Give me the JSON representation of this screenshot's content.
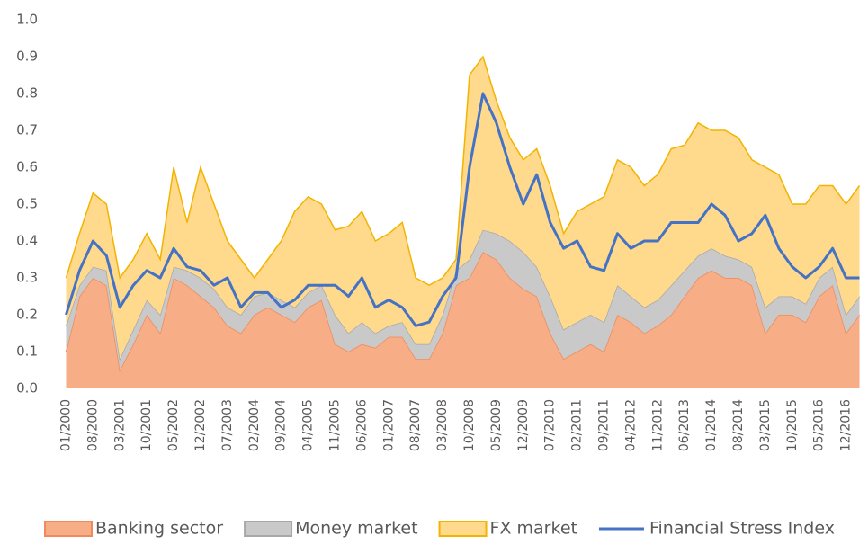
{
  "chart_data": {
    "type": "stacked-area-line",
    "categories": [
      "01/2000",
      null,
      "08/2000",
      null,
      "03/2001",
      null,
      "10/2001",
      null,
      "05/2002",
      null,
      "12/2002",
      null,
      "07/2003",
      null,
      "02/2004",
      null,
      "09/2004",
      null,
      "04/2005",
      null,
      "11/2005",
      null,
      "06/2006",
      null,
      "01/2007",
      null,
      "08/2007",
      null,
      "03/2008",
      null,
      "10/2008",
      null,
      "05/2009",
      null,
      "12/2009",
      null,
      "07/2010",
      null,
      "02/2011",
      null,
      "09/2011",
      null,
      "04/2012",
      null,
      "11/2012",
      null,
      "06/2013",
      null,
      "01/2014",
      null,
      "08/2014",
      null,
      "03/2015",
      null,
      "10/2015",
      null,
      "05/2016",
      null,
      "12/2016",
      null
    ],
    "series": [
      {
        "name": "Banking sector",
        "kind": "area",
        "color": "#f7ad86",
        "values": [
          0.1,
          0.25,
          0.3,
          0.28,
          0.05,
          0.12,
          0.2,
          0.15,
          0.3,
          0.28,
          0.25,
          0.22,
          0.17,
          0.15,
          0.2,
          0.22,
          0.2,
          0.18,
          0.22,
          0.24,
          0.12,
          0.1,
          0.12,
          0.11,
          0.14,
          0.14,
          0.08,
          0.08,
          0.15,
          0.28,
          0.3,
          0.37,
          0.35,
          0.3,
          0.27,
          0.25,
          0.15,
          0.08,
          0.1,
          0.12,
          0.1,
          0.2,
          0.18,
          0.15,
          0.17,
          0.2,
          0.25,
          0.3,
          0.32,
          0.3,
          0.3,
          0.28,
          0.15,
          0.2,
          0.2,
          0.18,
          0.25,
          0.28,
          0.15,
          0.2
        ]
      },
      {
        "name": "Money market",
        "kind": "area",
        "color": "#c9c9c9",
        "values": [
          0.07,
          0.03,
          0.03,
          0.04,
          0.03,
          0.04,
          0.04,
          0.05,
          0.03,
          0.04,
          0.05,
          0.05,
          0.05,
          0.05,
          0.05,
          0.04,
          0.04,
          0.04,
          0.04,
          0.04,
          0.08,
          0.05,
          0.06,
          0.04,
          0.03,
          0.04,
          0.04,
          0.04,
          0.05,
          0.04,
          0.05,
          0.06,
          0.07,
          0.1,
          0.1,
          0.08,
          0.1,
          0.08,
          0.08,
          0.08,
          0.08,
          0.08,
          0.07,
          0.07,
          0.07,
          0.08,
          0.07,
          0.06,
          0.06,
          0.06,
          0.05,
          0.05,
          0.07,
          0.05,
          0.05,
          0.05,
          0.05,
          0.05,
          0.05,
          0.05
        ]
      },
      {
        "name": "FX market",
        "kind": "area",
        "color": "#ffd98c",
        "values": [
          0.13,
          0.14,
          0.2,
          0.18,
          0.22,
          0.19,
          0.18,
          0.15,
          0.27,
          0.13,
          0.3,
          0.23,
          0.18,
          0.15,
          0.05,
          0.09,
          0.16,
          0.26,
          0.26,
          0.22,
          0.23,
          0.29,
          0.3,
          0.25,
          0.25,
          0.27,
          0.18,
          0.16,
          0.1,
          0.03,
          0.5,
          0.47,
          0.36,
          0.28,
          0.25,
          0.32,
          0.3,
          0.26,
          0.3,
          0.3,
          0.34,
          0.34,
          0.35,
          0.33,
          0.34,
          0.37,
          0.34,
          0.36,
          0.32,
          0.34,
          0.33,
          0.29,
          0.38,
          0.33,
          0.25,
          0.27,
          0.25,
          0.22,
          0.3,
          0.3
        ]
      },
      {
        "name": "Financial Stress Index",
        "kind": "line",
        "color": "#4472c4",
        "values": [
          0.2,
          0.32,
          0.4,
          0.36,
          0.22,
          0.28,
          0.32,
          0.3,
          0.38,
          0.33,
          0.32,
          0.28,
          0.3,
          0.22,
          0.26,
          0.26,
          0.22,
          0.24,
          0.28,
          0.28,
          0.28,
          0.25,
          0.3,
          0.22,
          0.24,
          0.22,
          0.17,
          0.18,
          0.25,
          0.3,
          0.6,
          0.8,
          0.72,
          0.6,
          0.5,
          0.58,
          0.45,
          0.38,
          0.4,
          0.33,
          0.32,
          0.42,
          0.38,
          0.4,
          0.4,
          0.45,
          0.45,
          0.45,
          0.5,
          0.47,
          0.4,
          0.42,
          0.47,
          0.38,
          0.33,
          0.3,
          0.33,
          0.38,
          0.3,
          0.3
        ]
      }
    ],
    "ylim": [
      0,
      1
    ],
    "yticks": [
      {
        "value": 0,
        "label": "0.0"
      },
      0.1,
      0.2,
      0.3,
      0.4,
      0.5,
      0.6,
      0.7,
      0.8,
      0.9,
      {
        "value": 1,
        "label": "1.0"
      }
    ],
    "grid": false,
    "legend": "bottom"
  }
}
